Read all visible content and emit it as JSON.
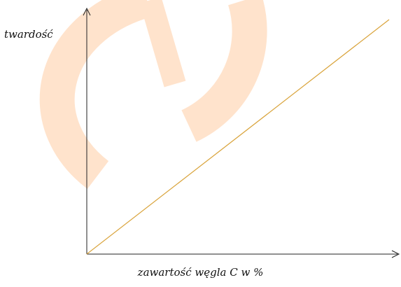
{
  "chart_data": {
    "type": "line",
    "xlabel": "zawartość węgla C w %",
    "ylabel": "twardość",
    "series": [
      {
        "x": [
          0,
          1
        ],
        "y": [
          0,
          1
        ]
      }
    ],
    "grid": false,
    "line_color": "#d9a33a",
    "axis_color": "#222222",
    "watermark_color": "#ffe3cc"
  }
}
